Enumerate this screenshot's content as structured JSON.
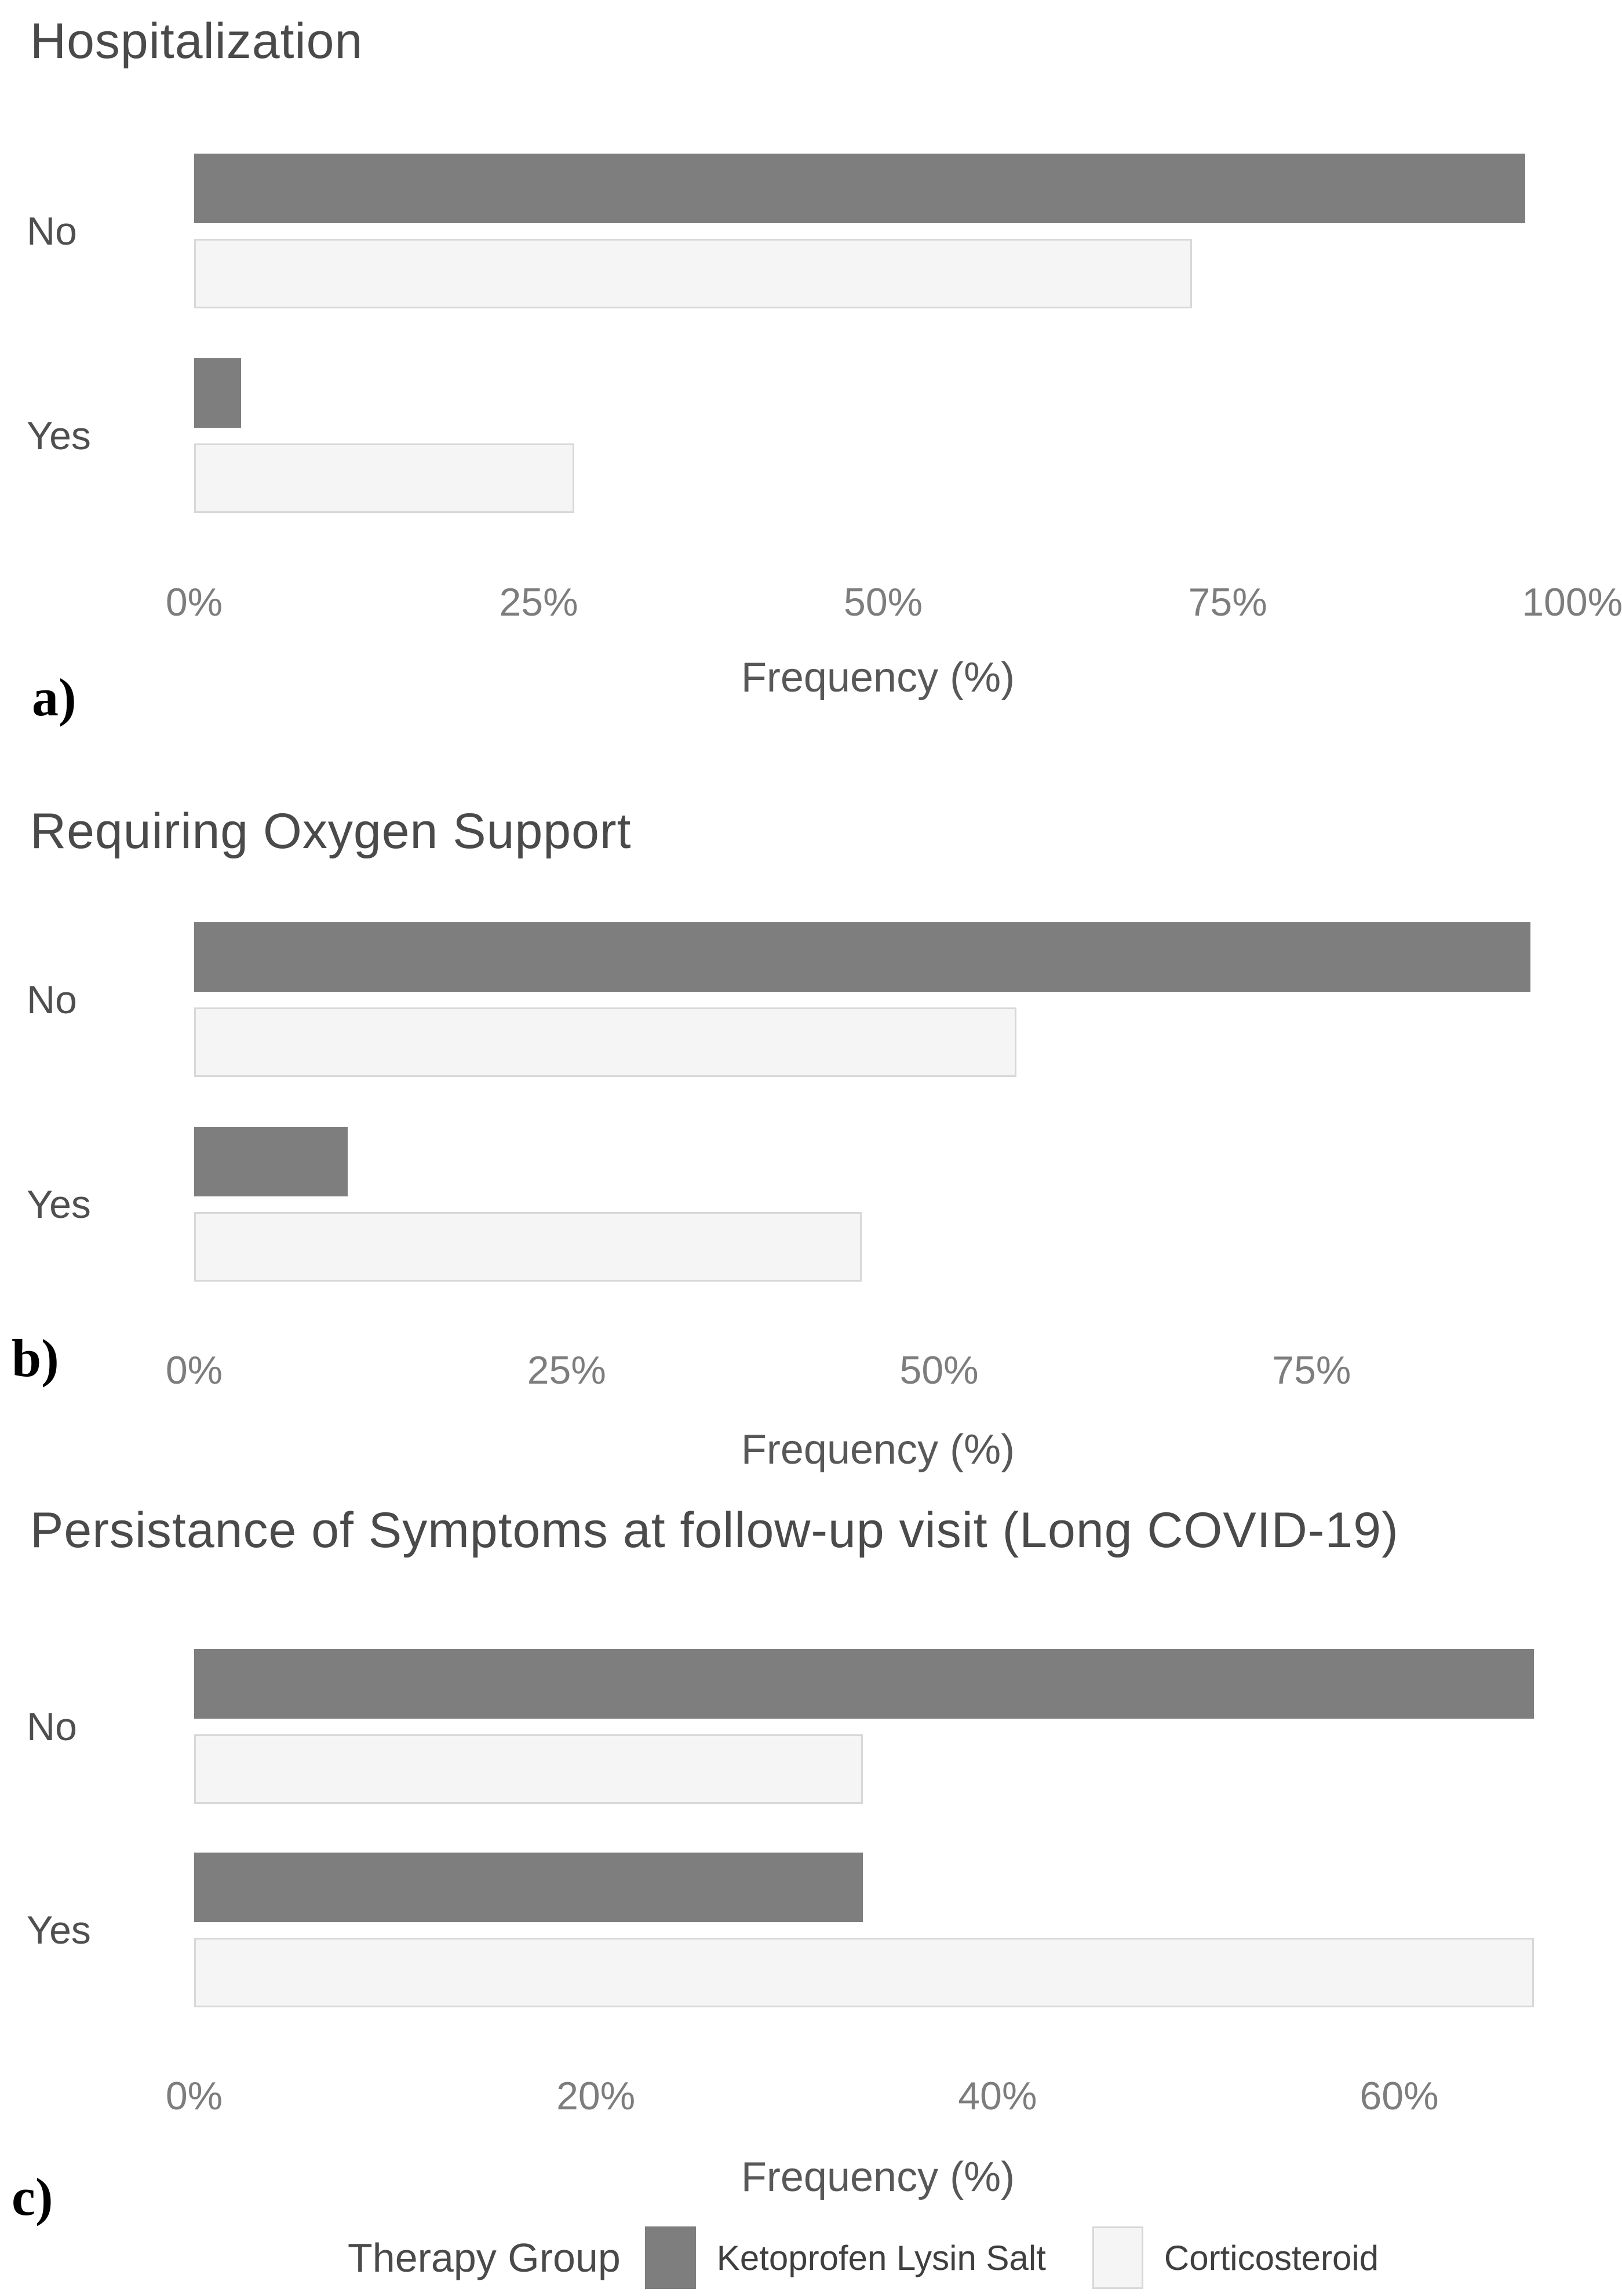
{
  "chart_data": [
    {
      "type": "bar",
      "orientation": "horizontal",
      "panel_letter": "a)",
      "title": "Hospitalization",
      "xlabel": "Frequency (%)",
      "ylabel": "",
      "categories": [
        "No",
        "Yes"
      ],
      "series": [
        {
          "name": "Ketoprofen Lysin Salt",
          "values": [
            96.6,
            3.4
          ]
        },
        {
          "name": "Corticosteroid",
          "values": [
            72.4,
            27.6
          ]
        }
      ],
      "x_ticks": [
        {
          "label": "0%",
          "value": 0
        },
        {
          "label": "25%",
          "value": 25
        },
        {
          "label": "50%",
          "value": 50
        },
        {
          "label": "75%",
          "value": 75
        },
        {
          "label": "100%",
          "value": 100
        }
      ],
      "xlim": [
        0,
        102.6
      ],
      "grid": false,
      "legend_position": "shared-bottom"
    },
    {
      "type": "bar",
      "orientation": "horizontal",
      "panel_letter": "b)",
      "title": "Requiring Oxygen Support",
      "xlabel": "Frequency (%)",
      "ylabel": "",
      "categories": [
        "No",
        "Yes"
      ],
      "series": [
        {
          "name": "Ketoprofen Lysin Salt",
          "values": [
            89.7,
            10.3
          ]
        },
        {
          "name": "Corticosteroid",
          "values": [
            55.2,
            44.8
          ]
        }
      ],
      "x_ticks": [
        {
          "label": "0%",
          "value": 0
        },
        {
          "label": "25%",
          "value": 25
        },
        {
          "label": "50%",
          "value": 50
        },
        {
          "label": "75%",
          "value": 75
        }
      ],
      "xlim": [
        0,
        94.9
      ],
      "grid": false,
      "legend_position": "shared-bottom"
    },
    {
      "type": "bar",
      "orientation": "horizontal",
      "panel_letter": "c)",
      "title": "Persistance of Symptoms at follow-up visit (Long COVID-19)",
      "xlabel": "Frequency (%)",
      "ylabel": "",
      "categories": [
        "No",
        "Yes"
      ],
      "series": [
        {
          "name": "Ketoprofen Lysin Salt",
          "values": [
            66.7,
            33.3
          ]
        },
        {
          "name": "Corticosteroid",
          "values": [
            33.3,
            66.7
          ]
        }
      ],
      "x_ticks": [
        {
          "label": "0%",
          "value": 0
        },
        {
          "label": "20%",
          "value": 20
        },
        {
          "label": "40%",
          "value": 40
        },
        {
          "label": "60%",
          "value": 60
        }
      ],
      "xlim": [
        0,
        70.4
      ],
      "grid": false,
      "legend_position": "shared-bottom"
    }
  ],
  "legend": {
    "title": "Therapy Group",
    "items": [
      {
        "label": "Ketoprofen Lysin Salt",
        "swatch": "dark"
      },
      {
        "label": "Corticosteroid",
        "swatch": "light"
      }
    ]
  },
  "colors": {
    "ketoprofen_fill": "#7e7e7e",
    "corticosteroid_fill": "#f5f5f5",
    "corticosteroid_border": "#d8d8d8",
    "title_text": "#4a4a4a",
    "tick_text": "#7d7d7d",
    "background": "#ffffff"
  }
}
